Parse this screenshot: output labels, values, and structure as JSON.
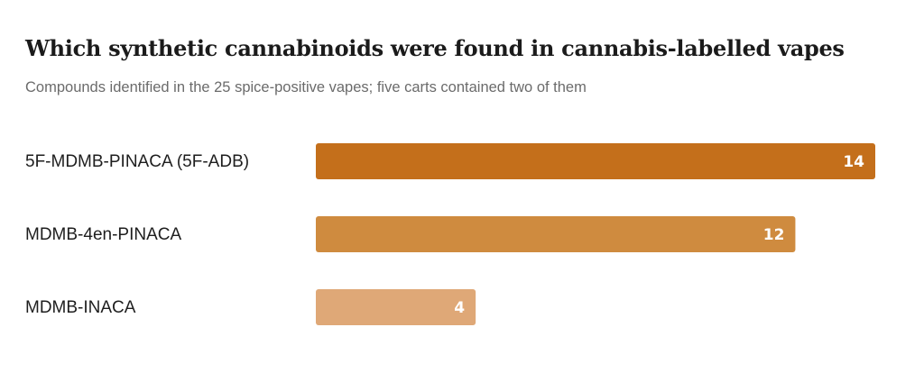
{
  "chart_data": {
    "type": "bar",
    "orientation": "horizontal",
    "title": "Which synthetic cannabinoids were found in cannabis-labelled vapes",
    "subtitle": "Compounds identified in the 25 spice-positive vapes; five carts contained two of them",
    "categories": [
      "5F-MDMB-PINACA (5F-ADB)",
      "MDMB-4en-PINACA",
      "MDMB-INACA"
    ],
    "values": [
      14,
      12,
      4
    ],
    "colors": [
      "#c46f1b",
      "#cf8b3f",
      "#dfa877"
    ],
    "xlim": [
      0,
      14
    ],
    "grid": false,
    "label_colors": {
      "inside": "#ffffff",
      "outside": "#1b1b1b"
    }
  }
}
